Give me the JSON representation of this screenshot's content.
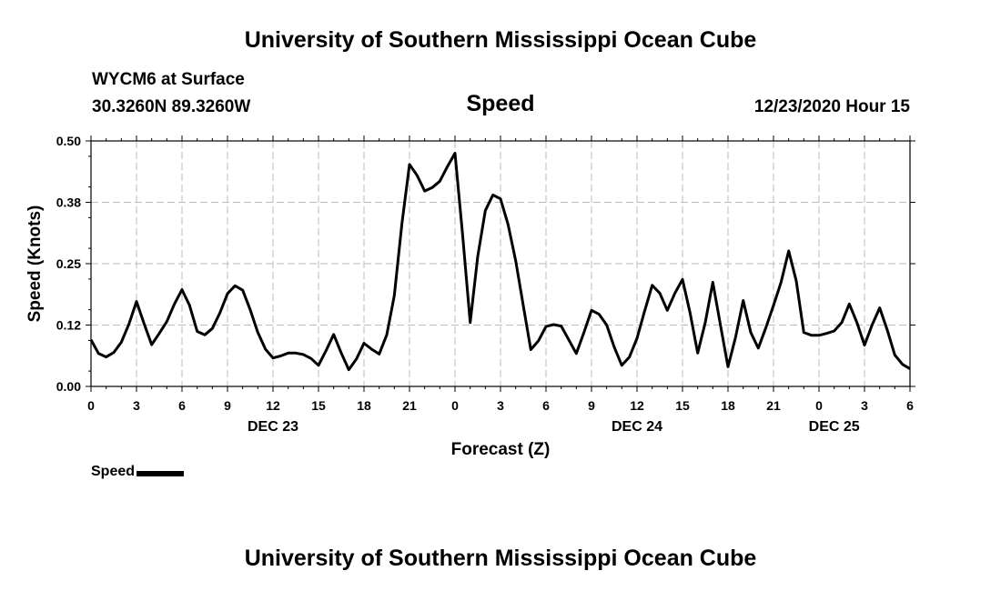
{
  "header": {
    "title": "University of Southern Mississippi Ocean Cube",
    "station": "WYCM6 at Surface",
    "coordinates": "30.3260N 89.3260W",
    "plot_title": "Speed",
    "datetime": "12/23/2020 Hour 15"
  },
  "footer": {
    "title": "University of Southern Mississippi Ocean Cube"
  },
  "legend": {
    "label": "Speed"
  },
  "chart_data": {
    "type": "line",
    "title": "Speed",
    "xlabel": "Forecast (Z)",
    "ylabel": "Speed (Knots)",
    "ylim": [
      0,
      0.5
    ],
    "xlim": [
      0,
      54
    ],
    "x_unit": "forecast hour (0 = 00Z DEC 23)",
    "grid": true,
    "line_color": "#000000",
    "y_ticks": [
      "0.00",
      "0.12",
      "0.25",
      "0.38",
      "0.50"
    ],
    "x_ticks": [
      {
        "x": 0,
        "label": "0"
      },
      {
        "x": 3,
        "label": "3"
      },
      {
        "x": 6,
        "label": "6"
      },
      {
        "x": 9,
        "label": "9"
      },
      {
        "x": 12,
        "label": "12"
      },
      {
        "x": 15,
        "label": "15"
      },
      {
        "x": 18,
        "label": "18"
      },
      {
        "x": 21,
        "label": "21"
      },
      {
        "x": 24,
        "label": "0"
      },
      {
        "x": 27,
        "label": "3"
      },
      {
        "x": 30,
        "label": "6"
      },
      {
        "x": 33,
        "label": "9"
      },
      {
        "x": 36,
        "label": "12"
      },
      {
        "x": 39,
        "label": "15"
      },
      {
        "x": 42,
        "label": "18"
      },
      {
        "x": 45,
        "label": "21"
      },
      {
        "x": 48,
        "label": "0"
      },
      {
        "x": 51,
        "label": "3"
      },
      {
        "x": 54,
        "label": "6"
      }
    ],
    "date_labels": [
      {
        "x": 12,
        "label": "DEC 23"
      },
      {
        "x": 36,
        "label": "DEC 24"
      },
      {
        "x": 49,
        "label": "DEC 25"
      }
    ],
    "series": [
      {
        "name": "Speed",
        "x": [
          0,
          0.5,
          1,
          1.5,
          2,
          2.5,
          3,
          3.5,
          4,
          4.5,
          5,
          5.5,
          6,
          6.5,
          7,
          7.5,
          8,
          8.5,
          9,
          9.5,
          10,
          10.5,
          11,
          11.5,
          12,
          12.5,
          13,
          13.5,
          14,
          14.5,
          15,
          15.5,
          16,
          16.5,
          17,
          17.5,
          18,
          18.5,
          19,
          19.5,
          20,
          20.5,
          21,
          21.5,
          22,
          22.5,
          23,
          23.5,
          24,
          24.5,
          25,
          25.5,
          26,
          26.5,
          27,
          27.5,
          28,
          28.5,
          29,
          29.5,
          30,
          30.5,
          31,
          31.5,
          32,
          32.5,
          33,
          33.5,
          34,
          34.5,
          35,
          35.5,
          36,
          36.5,
          37,
          37.5,
          38,
          38.5,
          39,
          39.5,
          40,
          40.5,
          41,
          41.5,
          42,
          42.5,
          43,
          43.5,
          44,
          44.5,
          45,
          45.5,
          46,
          46.5,
          47,
          47.5,
          48,
          48.5,
          49,
          49.5,
          50,
          50.5,
          51,
          51.5,
          52,
          52.5,
          53,
          53.5,
          54
        ],
        "values": [
          0.095,
          0.067,
          0.06,
          0.069,
          0.09,
          0.127,
          0.173,
          0.128,
          0.085,
          0.108,
          0.132,
          0.168,
          0.197,
          0.165,
          0.112,
          0.105,
          0.118,
          0.15,
          0.189,
          0.205,
          0.196,
          0.156,
          0.11,
          0.076,
          0.058,
          0.062,
          0.068,
          0.068,
          0.065,
          0.057,
          0.043,
          0.073,
          0.106,
          0.068,
          0.034,
          0.056,
          0.088,
          0.076,
          0.066,
          0.105,
          0.185,
          0.332,
          0.452,
          0.43,
          0.398,
          0.405,
          0.418,
          0.448,
          0.475,
          0.31,
          0.13,
          0.265,
          0.358,
          0.39,
          0.382,
          0.33,
          0.256,
          0.165,
          0.075,
          0.093,
          0.122,
          0.126,
          0.123,
          0.095,
          0.067,
          0.11,
          0.155,
          0.147,
          0.125,
          0.08,
          0.043,
          0.06,
          0.098,
          0.153,
          0.206,
          0.19,
          0.155,
          0.19,
          0.218,
          0.15,
          0.068,
          0.13,
          0.212,
          0.125,
          0.04,
          0.1,
          0.175,
          0.11,
          0.078,
          0.12,
          0.165,
          0.212,
          0.276,
          0.215,
          0.11,
          0.104,
          0.104,
          0.108,
          0.113,
          0.13,
          0.168,
          0.13,
          0.084,
          0.125,
          0.16,
          0.115,
          0.064,
          0.045,
          0.036
        ]
      }
    ]
  }
}
